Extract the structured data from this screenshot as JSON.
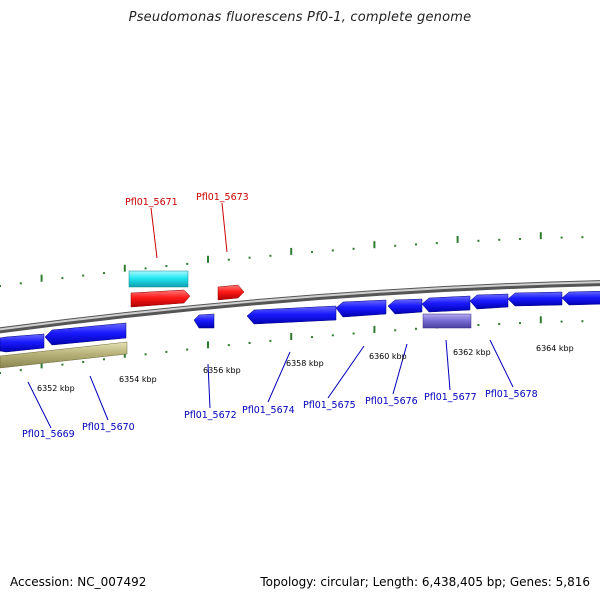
{
  "title": "Pseudomonas fluorescens Pf0-1, complete genome",
  "footer": {
    "accession": "Accession: NC_007492",
    "summary": "Topology: circular; Length: 6,438,405 bp; Genes: 5,816"
  },
  "colors": {
    "backbone": "#8a8a8a",
    "tick": "#2e7d2e",
    "forward_label": "#cc0000",
    "reverse_label": "#0000bb",
    "blue_gene": "#1a1aff",
    "red_gene": "#ff1a1a",
    "cyan_gene": "#22e6f0",
    "purple_gene": "#7b6fd6",
    "olive_feature": "#b8b27a"
  },
  "ruler": {
    "unit": "kbp",
    "labels": [
      {
        "value": 6352,
        "text": "6352 kbp"
      },
      {
        "value": 6354,
        "text": "6354 kbp"
      },
      {
        "value": 6356,
        "text": "6356 kbp"
      },
      {
        "value": 6358,
        "text": "6358 kbp"
      },
      {
        "value": 6360,
        "text": "6360 kbp"
      },
      {
        "value": 6362,
        "text": "6362 kbp"
      },
      {
        "value": 6364,
        "text": "6364 kbp"
      }
    ]
  },
  "genes_forward": [
    {
      "label": "Pfl01_5671",
      "color": "cyan"
    },
    {
      "label": "Pfl01_5673",
      "color": "red"
    }
  ],
  "genes_reverse": [
    {
      "label": "Pfl01_5669"
    },
    {
      "label": "Pfl01_5670"
    },
    {
      "label": "Pfl01_5672"
    },
    {
      "label": "Pfl01_5674"
    },
    {
      "label": "Pfl01_5675"
    },
    {
      "label": "Pfl01_5676"
    },
    {
      "label": "Pfl01_5677"
    },
    {
      "label": "Pfl01_5678"
    }
  ]
}
